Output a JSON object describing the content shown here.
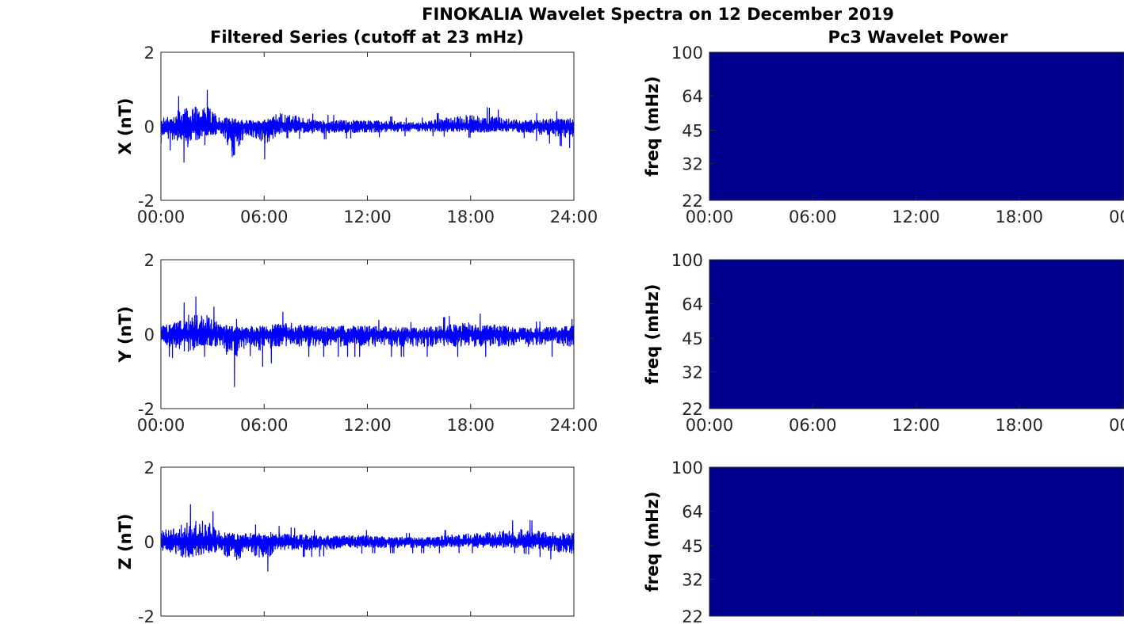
{
  "figure": {
    "title": "FINOKALIA Wavelet Spectra on 12 December 2019",
    "left_column_title": "Filtered Series (cutoff at 23 mHz)",
    "right_column_title": "Pc3 Wavelet Power"
  },
  "colors": {
    "trace": "#0000ff",
    "wavelet_power": "#00008f",
    "axes": "#262626"
  },
  "chart_data": [
    {
      "type": "line",
      "panel": "X",
      "ylabel": "X (nT)",
      "xlabel": "",
      "ylim": [
        -2,
        2
      ],
      "y_ticks": [
        "-2",
        "0",
        "2"
      ],
      "x_ticks": [
        "00:00",
        "06:00",
        "12:00",
        "18:00",
        "24:00"
      ],
      "xlim_hours": [
        0,
        24
      ],
      "grid": false,
      "series": [
        {
          "envelope": [
            {
              "hour": 0,
              "max": 0.35,
              "min": -0.45
            },
            {
              "hour": 1,
              "max": 0.8,
              "min": -0.8
            },
            {
              "hour": 1.5,
              "max": 0.9,
              "min": -1.05
            },
            {
              "hour": 2.5,
              "max": 1.1,
              "min": -0.5
            },
            {
              "hour": 3.5,
              "max": 0.45,
              "min": -0.4
            },
            {
              "hour": 4.2,
              "max": 0.4,
              "min": -1.6
            },
            {
              "hour": 5,
              "max": 0.3,
              "min": -0.4
            },
            {
              "hour": 6,
              "max": 0.3,
              "min": -0.9
            },
            {
              "hour": 7,
              "max": 0.7,
              "min": -0.3
            },
            {
              "hour": 9,
              "max": 0.3,
              "min": -0.35
            },
            {
              "hour": 12,
              "max": 0.3,
              "min": -0.3
            },
            {
              "hour": 15,
              "max": 0.2,
              "min": -0.25
            },
            {
              "hour": 18,
              "max": 0.6,
              "min": -0.3
            },
            {
              "hour": 21,
              "max": 0.3,
              "min": -0.3
            },
            {
              "hour": 24,
              "max": 0.45,
              "min": -0.6
            }
          ]
        }
      ]
    },
    {
      "type": "line",
      "panel": "Y",
      "ylabel": "Y (nT)",
      "xlabel": "",
      "ylim": [
        -2,
        2
      ],
      "y_ticks": [
        "-2",
        "0",
        "2"
      ],
      "x_ticks": [
        "00:00",
        "06:00",
        "12:00",
        "18:00",
        "24:00"
      ],
      "xlim_hours": [
        0,
        24
      ],
      "grid": false,
      "series": [
        {
          "envelope": [
            {
              "hour": 0,
              "max": 0.4,
              "min": -0.5
            },
            {
              "hour": 1,
              "max": 0.6,
              "min": -0.7
            },
            {
              "hour": 1.5,
              "max": 0.95,
              "min": -0.9
            },
            {
              "hour": 2.5,
              "max": 1.05,
              "min": -0.6
            },
            {
              "hour": 3.5,
              "max": 0.5,
              "min": -0.6
            },
            {
              "hour": 4.2,
              "max": 0.4,
              "min": -1.5
            },
            {
              "hour": 5,
              "max": 0.4,
              "min": -0.5
            },
            {
              "hour": 6,
              "max": 0.4,
              "min": -0.9
            },
            {
              "hour": 7,
              "max": 0.6,
              "min": -0.6
            },
            {
              "hour": 9,
              "max": 0.4,
              "min": -0.6
            },
            {
              "hour": 12,
              "max": 0.4,
              "min": -0.6
            },
            {
              "hour": 15,
              "max": 0.3,
              "min": -0.6
            },
            {
              "hour": 18,
              "max": 0.6,
              "min": -0.6
            },
            {
              "hour": 21,
              "max": 0.3,
              "min": -0.6
            },
            {
              "hour": 24,
              "max": 0.4,
              "min": -0.6
            }
          ]
        }
      ]
    },
    {
      "type": "line",
      "panel": "Z",
      "ylabel": "Z (nT)",
      "xlabel": "",
      "ylim": [
        -2,
        2
      ],
      "y_ticks": [
        "-2",
        "0",
        "2"
      ],
      "xlim_hours": [
        0,
        24
      ],
      "grid": false,
      "series": [
        {
          "envelope": [
            {
              "hour": 0,
              "max": 0.5,
              "min": -0.4
            },
            {
              "hour": 1,
              "max": 0.8,
              "min": -0.7
            },
            {
              "hour": 1.5,
              "max": 0.95,
              "min": -0.85
            },
            {
              "hour": 2.5,
              "max": 1.15,
              "min": -0.6
            },
            {
              "hour": 3.5,
              "max": 0.5,
              "min": -0.5
            },
            {
              "hour": 4.2,
              "max": 0.4,
              "min": -1.4
            },
            {
              "hour": 5,
              "max": 0.4,
              "min": -0.5
            },
            {
              "hour": 6,
              "max": 0.5,
              "min": -0.9
            },
            {
              "hour": 7,
              "max": 0.4,
              "min": -0.4
            },
            {
              "hour": 9,
              "max": 0.3,
              "min": -0.4
            },
            {
              "hour": 12,
              "max": 0.3,
              "min": -0.3
            },
            {
              "hour": 15,
              "max": 0.2,
              "min": -0.3
            },
            {
              "hour": 18,
              "max": 0.4,
              "min": -0.3
            },
            {
              "hour": 21,
              "max": 0.6,
              "min": -0.3
            },
            {
              "hour": 24,
              "max": 0.4,
              "min": -0.6
            }
          ]
        }
      ]
    },
    {
      "type": "heatmap",
      "panel": "X wavelet power",
      "ylabel": "freq (mHz)",
      "xlabel": "",
      "y_scale": "log",
      "ylim": [
        22,
        100
      ],
      "y_ticks": [
        "100",
        "64",
        "45",
        "32",
        "22"
      ],
      "x_ticks": [
        "00:00",
        "06:00",
        "12:00",
        "18:00",
        "00"
      ],
      "fill": "uniform low power"
    },
    {
      "type": "heatmap",
      "panel": "Y wavelet power",
      "ylabel": "freq (mHz)",
      "xlabel": "",
      "y_scale": "log",
      "ylim": [
        22,
        100
      ],
      "y_ticks": [
        "100",
        "64",
        "45",
        "32",
        "22"
      ],
      "x_ticks": [
        "00:00",
        "06:00",
        "12:00",
        "18:00",
        "00"
      ],
      "fill": "uniform low power"
    },
    {
      "type": "heatmap",
      "panel": "Z wavelet power",
      "ylabel": "freq (mHz)",
      "xlabel": "",
      "y_scale": "log",
      "ylim": [
        22,
        100
      ],
      "y_ticks": [
        "100",
        "64",
        "45",
        "32",
        "22"
      ],
      "fill": "uniform low power"
    }
  ]
}
